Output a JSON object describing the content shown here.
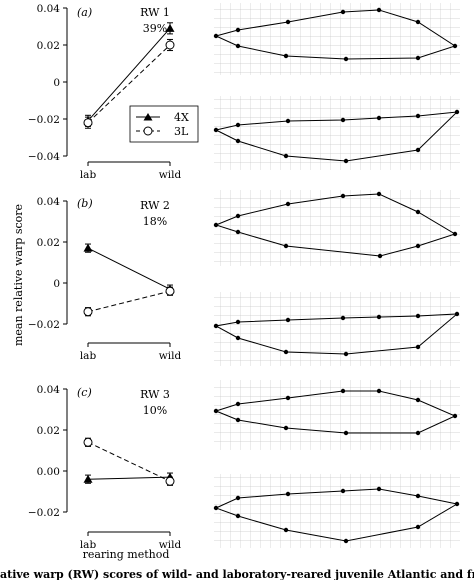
{
  "chart_data": [
    {
      "type": "line",
      "panel_label": "(a)",
      "title": "RW 1",
      "subtitle": "39%",
      "categories": [
        "lab",
        "wild"
      ],
      "ylim": [
        -0.04,
        0.04
      ],
      "yticks": [
        "0.04",
        "0.02",
        "0",
        "−0.02",
        "−0.04"
      ],
      "series": [
        {
          "name": "4X",
          "values": [
            -0.021,
            0.029
          ],
          "err": [
            0.003,
            0.003
          ],
          "marker": "triangle",
          "line": "solid"
        },
        {
          "name": "3L",
          "values": [
            -0.022,
            0.02
          ],
          "err": [
            0.003,
            0.003
          ],
          "marker": "circle",
          "line": "dashed"
        }
      ]
    },
    {
      "type": "line",
      "panel_label": "(b)",
      "title": "RW 2",
      "subtitle": "18%",
      "categories": [
        "lab",
        "wild"
      ],
      "ylim": [
        -0.03,
        0.04
      ],
      "yticks": [
        "0.04",
        "0.02",
        "0",
        "−0.02"
      ],
      "series": [
        {
          "name": "4X",
          "values": [
            0.017,
            -0.003
          ],
          "err": [
            0.002,
            0.002
          ],
          "marker": "triangle",
          "line": "solid"
        },
        {
          "name": "3L",
          "values": [
            -0.014,
            -0.004
          ],
          "err": [
            0.002,
            0.002
          ],
          "marker": "circle",
          "line": "dashed"
        }
      ]
    },
    {
      "type": "line",
      "panel_label": "(c)",
      "title": "RW 3",
      "subtitle": "10%",
      "categories": [
        "lab",
        "wild"
      ],
      "ylim": [
        -0.03,
        0.04
      ],
      "yticks": [
        "0.04",
        "0.02",
        "0.00",
        "−0.02"
      ],
      "series": [
        {
          "name": "4X",
          "values": [
            -0.004,
            -0.003
          ],
          "err": [
            0.002,
            0.002
          ],
          "marker": "triangle",
          "line": "solid"
        },
        {
          "name": "3L",
          "values": [
            0.014,
            -0.005
          ],
          "err": [
            0.002,
            0.002
          ],
          "marker": "circle",
          "line": "dashed"
        }
      ]
    }
  ],
  "ylabel": "mean relative warp score",
  "xlabel": "rearing method",
  "legend": {
    "items": [
      "4X",
      "3L"
    ]
  },
  "caption": "ative warp (RW) scores of wild- and laboratory-reared juvenile Atlantic and from two"
}
